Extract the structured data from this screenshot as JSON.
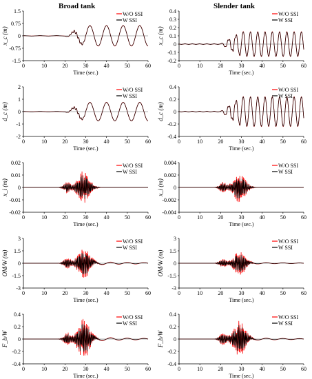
{
  "columns": [
    "Broad tank",
    "Slender tank"
  ],
  "colors": {
    "wo_ssi": "#ff0000",
    "w_ssi": "#000000",
    "axis": "#000000"
  },
  "chart_data": [
    {
      "type": "line",
      "column": 0,
      "row": 0,
      "ylabel": "x_c (m)",
      "xlabel": "Time (sec.)",
      "xlim": [
        0,
        60
      ],
      "ylim": [
        -1.5,
        1.5
      ],
      "xticks": [
        0,
        10,
        20,
        30,
        40,
        50,
        60
      ],
      "yticks": [
        "-1.5",
        "-0.75",
        "0",
        "0.75",
        "1.5"
      ],
      "kind": "slosh",
      "amp": 0.62,
      "period": 8.0,
      "series": [
        {
          "name": "W/O SSI"
        },
        {
          "name": "W SSI"
        }
      ]
    },
    {
      "type": "line",
      "column": 1,
      "row": 0,
      "ylabel": "x_c (m)",
      "xlabel": "Time (sec.)",
      "xlim": [
        0,
        60
      ],
      "ylim": [
        -0.2,
        0.4
      ],
      "xticks": [
        0,
        10,
        20,
        30,
        40,
        50,
        60
      ],
      "yticks": [
        "-0.2",
        "-0.1",
        "0",
        "0.1",
        "0.2",
        "0.3",
        "0.4"
      ],
      "kind": "slosh",
      "amp": 0.15,
      "period": 3.5,
      "series": [
        {
          "name": "W/O SSI"
        },
        {
          "name": "W SSI"
        }
      ]
    },
    {
      "type": "line",
      "column": 0,
      "row": 1,
      "ylabel": "d_c (m)",
      "xlabel": "Time (sec.)",
      "xlim": [
        0,
        60
      ],
      "ylim": [
        -2,
        2
      ],
      "xticks": [
        0,
        10,
        20,
        30,
        40,
        50,
        60
      ],
      "yticks": [
        "-2",
        "-1",
        "0",
        "1",
        "2"
      ],
      "kind": "slosh",
      "amp": 0.75,
      "period": 8.0,
      "series": [
        {
          "name": "W/O SSI"
        },
        {
          "name": "W SSI"
        }
      ]
    },
    {
      "type": "line",
      "column": 1,
      "row": 1,
      "ylabel": "d_c (m)",
      "xlabel": "Time (sec.)",
      "xlim": [
        0,
        60
      ],
      "ylim": [
        -0.4,
        0.4
      ],
      "xticks": [
        0,
        10,
        20,
        30,
        40,
        50,
        60
      ],
      "yticks": [
        "-0.4",
        "-0.2",
        "0",
        "0.2",
        "0.4"
      ],
      "kind": "slosh",
      "amp": 0.24,
      "period": 3.5,
      "series": [
        {
          "name": "W/O SSI"
        },
        {
          "name": "W SSI"
        }
      ]
    },
    {
      "type": "line",
      "column": 0,
      "row": 2,
      "ylabel": "x_i (m)",
      "xlabel": "Time (sec.)",
      "xlim": [
        0,
        60
      ],
      "ylim": [
        -0.02,
        0.02
      ],
      "xticks": [
        0,
        10,
        20,
        30,
        40,
        50,
        60
      ],
      "yticks": [
        "-0.02",
        "-0.01",
        "0",
        "0.01",
        "0.02"
      ],
      "kind": "burst",
      "amp": 0.011,
      "tail": 0.0,
      "series": [
        {
          "name": "W/O SSI"
        },
        {
          "name": "W SSI"
        }
      ]
    },
    {
      "type": "line",
      "column": 1,
      "row": 2,
      "ylabel": "x_i (m)",
      "xlabel": "Time (sec.)",
      "xlim": [
        0,
        60
      ],
      "ylim": [
        -0.004,
        0.004
      ],
      "xticks": [
        0,
        10,
        20,
        30,
        40,
        50,
        60
      ],
      "yticks": [
        "-0.004",
        "-0.002",
        "0",
        "0.002",
        "0.004"
      ],
      "kind": "burst",
      "amp": 0.0021,
      "tail": 0.0,
      "series": [
        {
          "name": "W/O SSI"
        },
        {
          "name": "W SSI"
        }
      ]
    },
    {
      "type": "line",
      "column": 0,
      "row": 3,
      "ylabel": "OM/W (m)",
      "xlabel": "Time (sec.)",
      "xlim": [
        0,
        60
      ],
      "ylim": [
        -3,
        3
      ],
      "xticks": [
        0,
        10,
        20,
        30,
        40,
        50,
        60
      ],
      "yticks": [
        "-3",
        "-1.5",
        "0",
        "1.5",
        "3"
      ],
      "kind": "burst",
      "amp": 1.6,
      "tail": 0.2,
      "series": [
        {
          "name": "W/O SSI"
        },
        {
          "name": "W SSI"
        }
      ]
    },
    {
      "type": "line",
      "column": 1,
      "row": 3,
      "ylabel": "OM/W (m)",
      "xlabel": "Time (sec.)",
      "xlim": [
        0,
        60
      ],
      "ylim": [
        -3,
        3
      ],
      "xticks": [
        0,
        10,
        20,
        30,
        40,
        50,
        60
      ],
      "yticks": [
        "-3",
        "-1.5",
        "0",
        "1.5",
        "3"
      ],
      "kind": "burst",
      "amp": 1.3,
      "tail": 0.1,
      "series": [
        {
          "name": "W/O SSI"
        },
        {
          "name": "W SSI"
        }
      ]
    },
    {
      "type": "line",
      "column": 0,
      "row": 4,
      "ylabel": "F_b/W",
      "xlabel": "Time (sec.)",
      "xlim": [
        0,
        60
      ],
      "ylim": [
        -0.4,
        0.4
      ],
      "xticks": [
        0,
        10,
        20,
        30,
        40,
        50,
        60
      ],
      "yticks": [
        "-0.4",
        "-0.2",
        "0",
        "0.2",
        "0.4"
      ],
      "kind": "burst",
      "amp": 0.27,
      "tail": 0.03,
      "series": [
        {
          "name": "W/O SSI"
        },
        {
          "name": "W SSI"
        }
      ]
    },
    {
      "type": "line",
      "column": 1,
      "row": 4,
      "ylabel": "F_b/W",
      "xlabel": "Time (sec.)",
      "xlim": [
        0,
        60
      ],
      "ylim": [
        -0.4,
        0.4
      ],
      "xticks": [
        0,
        10,
        20,
        30,
        40,
        50,
        60
      ],
      "yticks": [
        "-0.4",
        "-0.2",
        "0",
        "0.2",
        "0.4"
      ],
      "kind": "burst",
      "amp": 0.25,
      "tail": 0.02,
      "series": [
        {
          "name": "W/O SSI"
        },
        {
          "name": "W SSI"
        }
      ]
    }
  ]
}
